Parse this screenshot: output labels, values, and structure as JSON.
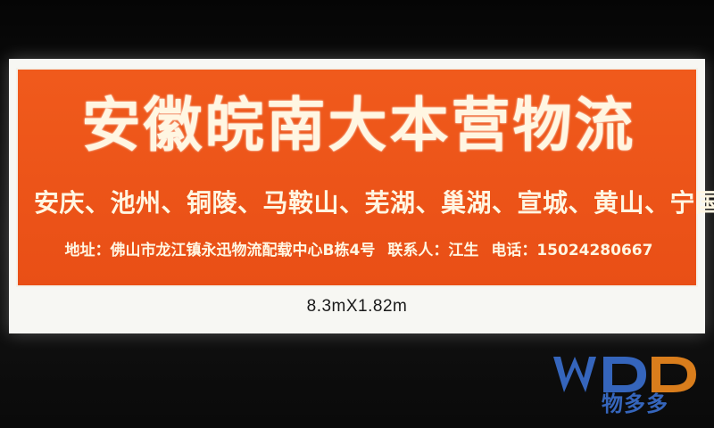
{
  "sign": {
    "title": "安徽皖南大本营物流",
    "cities": "安庆、池州、铜陵、马鞍山、芜湖、巢湖、宣城、黄山、宁国",
    "address": "地址：佛山市龙江镇永迅物流配载中心B栋4号",
    "contact": "联系人：江生",
    "phone": "电话：15024280667",
    "dimensions": "8.3mX1.82m"
  },
  "watermark": {
    "logo_text": "WDD",
    "name": "物多多",
    "colors": {
      "orange": "#f08a1e",
      "blue": "#3a6fcf"
    }
  },
  "colors": {
    "banner": "#ec5418",
    "text": "#fff6e2",
    "board": "#f7f7f3"
  }
}
